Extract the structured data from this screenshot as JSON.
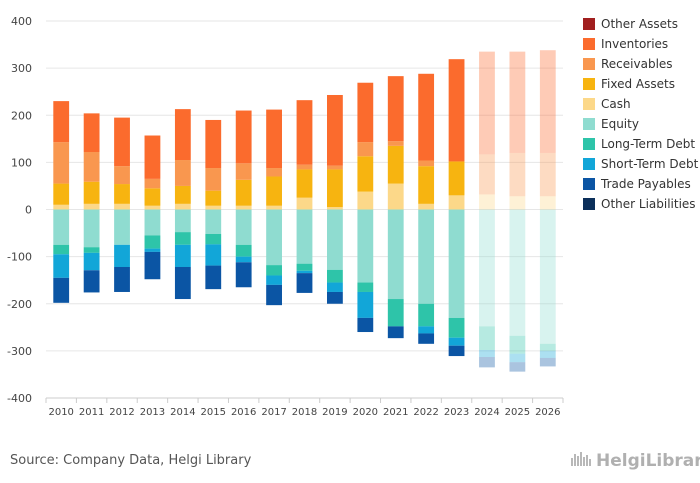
{
  "chart_data": {
    "type": "bar",
    "stacked": true,
    "categories": [
      "2010",
      "2011",
      "2012",
      "2013",
      "2014",
      "2015",
      "2016",
      "2017",
      "2018",
      "2019",
      "2020",
      "2021",
      "2022",
      "2023",
      "2024",
      "2025",
      "2026"
    ],
    "forecast_from": "2024",
    "ylim": [
      -400,
      400
    ],
    "yticks": [
      -400,
      -300,
      -200,
      -100,
      0,
      100,
      200,
      300,
      400
    ],
    "grid": true,
    "legend_position": "right",
    "asset_series": [
      {
        "name": "Cash",
        "color": "#fcd889",
        "values": [
          10,
          12,
          12,
          8,
          12,
          8,
          8,
          8,
          25,
          5,
          38,
          55,
          12,
          30,
          32,
          28,
          28
        ]
      },
      {
        "name": "Fixed Assets",
        "color": "#f7b410",
        "values": [
          45,
          47,
          42,
          37,
          38,
          32,
          55,
          62,
          60,
          80,
          75,
          80,
          80,
          72,
          0,
          0,
          0
        ]
      },
      {
        "name": "Receivables",
        "color": "#f9974f",
        "values": [
          88,
          63,
          38,
          20,
          55,
          48,
          35,
          18,
          10,
          8,
          30,
          10,
          12,
          0,
          85,
          92,
          92
        ]
      },
      {
        "name": "Inventories",
        "color": "#fb6b2d",
        "values": [
          87,
          82,
          103,
          92,
          108,
          102,
          112,
          124,
          137,
          150,
          126,
          138,
          184,
          217,
          218,
          215,
          218
        ]
      },
      {
        "name": "Other Assets",
        "color": "#a11f1f",
        "values": [
          0,
          0,
          0,
          0,
          0,
          0,
          0,
          0,
          0,
          0,
          0,
          0,
          0,
          0,
          0,
          0,
          0
        ]
      }
    ],
    "liability_series": [
      {
        "name": "Equity",
        "color": "#8fdcd0",
        "values": [
          -75,
          -80,
          -75,
          -55,
          -48,
          -52,
          -75,
          -118,
          -115,
          -128,
          -155,
          -190,
          -200,
          -230,
          -248,
          -268,
          -285
        ]
      },
      {
        "name": "Long-Term Debt",
        "color": "#2ec4a9",
        "values": [
          -20,
          -12,
          0,
          -28,
          -27,
          -22,
          -25,
          -22,
          -15,
          -27,
          -20,
          -58,
          -48,
          -42,
          -50,
          -38,
          -15
        ]
      },
      {
        "name": "Short-Term Debt",
        "color": "#12a6d8",
        "values": [
          -50,
          -37,
          -47,
          -7,
          -47,
          -45,
          -12,
          -20,
          -5,
          -20,
          -55,
          0,
          -15,
          -17,
          -15,
          -18,
          -15
        ]
      },
      {
        "name": "Trade Payables",
        "color": "#0b55a4",
        "values": [
          -53,
          -47,
          -53,
          -58,
          -68,
          -50,
          -53,
          -43,
          -42,
          -25,
          -30,
          -25,
          -22,
          -22,
          -22,
          -20,
          -18
        ]
      },
      {
        "name": "Other Liabilities",
        "color": "#0b2f5a",
        "values": [
          0,
          0,
          0,
          0,
          0,
          0,
          0,
          0,
          0,
          0,
          0,
          0,
          0,
          0,
          0,
          0,
          0
        ]
      }
    ],
    "legend_entries": [
      {
        "name": "Other Assets",
        "color": "#a11f1f"
      },
      {
        "name": "Inventories",
        "color": "#fb6b2d"
      },
      {
        "name": "Receivables",
        "color": "#f9974f"
      },
      {
        "name": "Fixed Assets",
        "color": "#f7b410"
      },
      {
        "name": "Cash",
        "color": "#fcd889"
      },
      {
        "name": "Equity",
        "color": "#8fdcd0"
      },
      {
        "name": "Long-Term Debt",
        "color": "#2ec4a9"
      },
      {
        "name": "Short-Term Debt",
        "color": "#12a6d8"
      },
      {
        "name": "Trade Payables",
        "color": "#0b55a4"
      },
      {
        "name": "Other Liabilities",
        "color": "#0b2f5a"
      }
    ]
  },
  "footer": {
    "source": "Source: Company Data, Helgi Library",
    "brand": "HelgiLibrary"
  }
}
